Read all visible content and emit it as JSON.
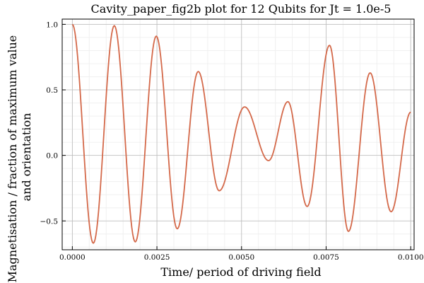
{
  "chart_data": {
    "type": "line",
    "title": "Cavity_paper_fig2b plot for 12 Qubits for Jt = 1.0e-5",
    "xlabel": "Time/ period of driving field",
    "ylabel_lines": [
      "Magnetisation / fraction of maximum value",
      "and orientation"
    ],
    "xlim": [
      -0.0003,
      0.0101
    ],
    "ylim": [
      -0.72,
      1.04
    ],
    "x_ticks": [
      {
        "value": 0.0,
        "label": "0.0000"
      },
      {
        "value": 0.0025,
        "label": "0.0025"
      },
      {
        "value": 0.005,
        "label": "0.0050"
      },
      {
        "value": 0.0075,
        "label": "0.0075"
      },
      {
        "value": 0.01,
        "label": "0.0100"
      }
    ],
    "y_ticks": [
      {
        "value": -0.5,
        "label": "−0.5"
      },
      {
        "value": 0.0,
        "label": "0.0"
      },
      {
        "value": 0.5,
        "label": "0.5"
      },
      {
        "value": 1.0,
        "label": "1.0"
      }
    ],
    "grid": true,
    "minor_grid": true,
    "legend": "none",
    "line_color": "#d4694a",
    "series": [
      {
        "x": [
          0.0,
          0.00062,
          0.00124,
          0.00186,
          0.00248,
          0.0031,
          0.00372,
          0.00434,
          0.00509,
          0.0058,
          0.00637,
          0.00694,
          0.0076,
          0.00816,
          0.0088,
          0.00942,
          0.01
        ],
        "y": [
          1.0,
          -0.67,
          0.99,
          -0.66,
          0.91,
          -0.56,
          0.64,
          -0.27,
          0.37,
          -0.04,
          0.41,
          -0.39,
          0.84,
          -0.58,
          0.63,
          -0.43,
          0.33
        ]
      }
    ]
  }
}
